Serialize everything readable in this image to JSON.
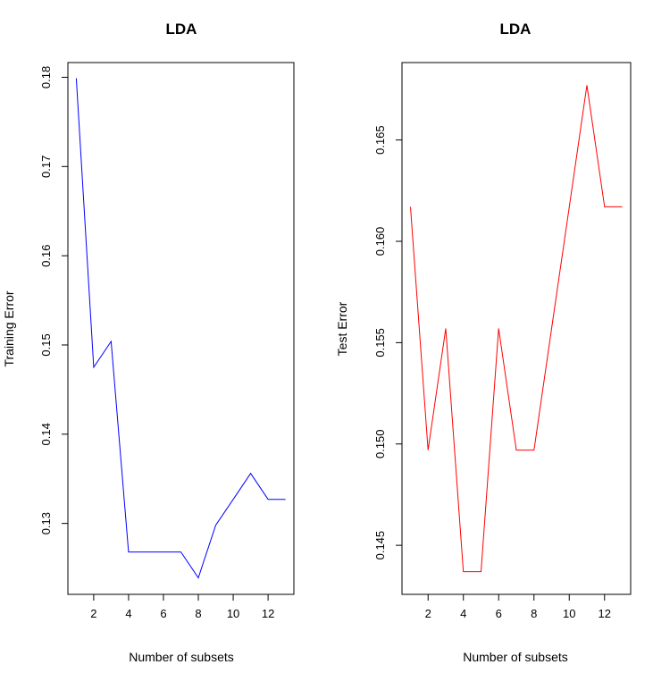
{
  "chart_data": [
    {
      "type": "line",
      "title": "LDA",
      "xlabel": "Number of subsets",
      "ylabel": "Training Error",
      "x": [
        1,
        2,
        3,
        4,
        5,
        6,
        7,
        8,
        9,
        10,
        11,
        12,
        13
      ],
      "series": [
        {
          "values": [
            0.1799,
            0.1475,
            0.1504,
            0.1268,
            0.1268,
            0.1268,
            0.1268,
            0.1239,
            0.1298,
            0.1327,
            0.1356,
            0.1327,
            0.1327
          ],
          "color": "#0000ff"
        }
      ],
      "xlim": [
        0.52,
        13.48
      ],
      "ylim": [
        0.12205,
        0.18165
      ],
      "xticks": [
        2,
        4,
        6,
        8,
        10,
        12
      ],
      "yticks": [
        0.13,
        0.14,
        0.15,
        0.16,
        0.17,
        0.18
      ],
      "xtick_labels": [
        "2",
        "4",
        "6",
        "8",
        "10",
        "12"
      ],
      "ytick_labels": [
        "0.13",
        "0.14",
        "0.15",
        "0.16",
        "0.17",
        "0.18"
      ]
    },
    {
      "type": "line",
      "title": "LDA",
      "xlabel": "Number of subsets",
      "ylabel": "Test Error",
      "x": [
        1,
        2,
        3,
        4,
        5,
        6,
        7,
        8,
        9,
        10,
        11,
        12,
        13
      ],
      "series": [
        {
          "values": [
            0.1617,
            0.1497,
            0.1557,
            0.1437,
            0.1437,
            0.1557,
            0.1497,
            0.1497,
            0.1557,
            0.1617,
            0.1677,
            0.1617,
            0.1617
          ],
          "color": "#ff0000"
        }
      ],
      "xlim": [
        0.52,
        13.48
      ],
      "ylim": [
        0.14258,
        0.16882
      ],
      "xticks": [
        2,
        4,
        6,
        8,
        10,
        12
      ],
      "yticks": [
        0.145,
        0.15,
        0.155,
        0.16,
        0.165
      ],
      "xtick_labels": [
        "2",
        "4",
        "6",
        "8",
        "10",
        "12"
      ],
      "ytick_labels": [
        "0.145",
        "0.150",
        "0.155",
        "0.160",
        "0.165"
      ]
    }
  ]
}
